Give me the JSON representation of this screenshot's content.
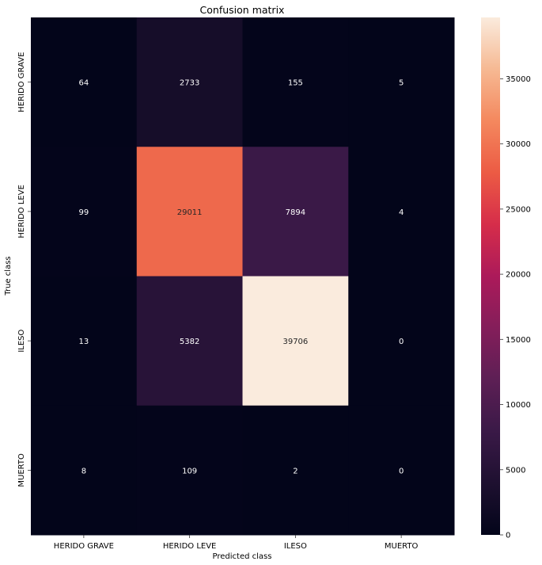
{
  "chart_data": {
    "type": "heatmap",
    "title": "Confusion matrix",
    "xlabel": "Predicted class",
    "ylabel": "True class",
    "x_categories": [
      "HERIDO GRAVE",
      "HERIDO LEVE",
      "ILESO",
      "MUERTO"
    ],
    "y_categories": [
      "HERIDO GRAVE",
      "HERIDO LEVE",
      "ILESO",
      "MUERTO"
    ],
    "values": [
      [
        64,
        2733,
        155,
        5
      ],
      [
        99,
        29011,
        7894,
        4
      ],
      [
        13,
        5382,
        39706,
        0
      ],
      [
        8,
        109,
        2,
        0
      ]
    ],
    "colorbar": {
      "min": 0,
      "max": 39706,
      "ticks": [
        0,
        5000,
        10000,
        15000,
        20000,
        25000,
        30000,
        35000
      ]
    },
    "colormap": "rocket"
  }
}
